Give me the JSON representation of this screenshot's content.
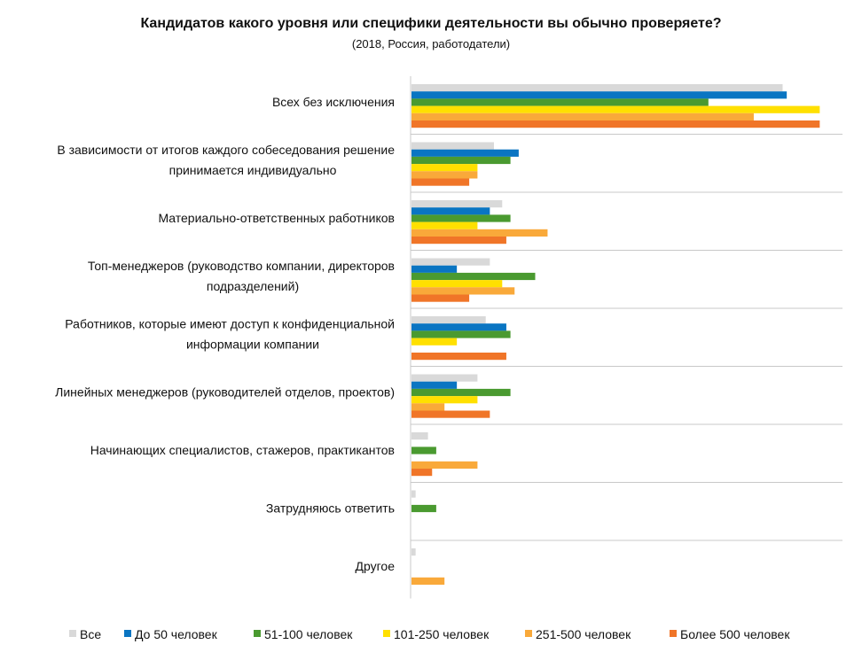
{
  "chart_data": {
    "type": "bar",
    "orientation": "horizontal",
    "title": "Кандидатов какого уровня или специфики деятельности вы обычно проверяете?",
    "subtitle": "(2018, Россия, работодатели)",
    "xlim": [
      0,
      100
    ],
    "grid": false,
    "legend_position": "bottom",
    "categories": [
      "Всех без исключения",
      "В зависимости от итогов каждого собеседования решение принимается индивидуально",
      "Материально-ответственных работников",
      "Топ-менеджеров (руководство компании, директоров подразделений)",
      "Работников, которые имеют доступ к конфиденциальной информации компании",
      "Линейных менеджеров (руководителей отделов, проектов)",
      "Начинающих специалистов, стажеров, практикантов",
      "Затрудняюсь ответить",
      "Другое"
    ],
    "category_lines": [
      [
        "Всех без исключения"
      ],
      [
        "В зависимости от итогов каждого собеседования решение",
        "принимается индивидуально"
      ],
      [
        "Материально-ответственных работников"
      ],
      [
        "Топ-менеджеров (руководство компании, директоров",
        "подразделений)"
      ],
      [
        "Работников, которые имеют доступ к конфиденциальной",
        "информации компании"
      ],
      [
        "Линейных менеджеров (руководителей отделов, проектов)"
      ],
      [
        "Начинающих специалистов, стажеров, практикантов"
      ],
      [
        "Затрудняюсь ответить"
      ],
      [
        "Другое"
      ]
    ],
    "series": [
      {
        "name": "Все",
        "color": "#d9d9d9",
        "values": [
          90,
          20,
          22,
          19,
          18,
          16,
          4,
          1,
          1
        ]
      },
      {
        "name": "До 50 человек",
        "color": "#0a75c2",
        "values": [
          91,
          26,
          19,
          11,
          23,
          11,
          0,
          0,
          0
        ]
      },
      {
        "name": "51-100 человек",
        "color": "#4a9a30",
        "values": [
          72,
          24,
          24,
          30,
          24,
          24,
          6,
          6,
          0
        ]
      },
      {
        "name": "101-250 человек",
        "color": "#ffe000",
        "values": [
          99,
          16,
          16,
          22,
          11,
          16,
          0,
          0,
          0
        ]
      },
      {
        "name": "251-500 человек",
        "color": "#f9a93a",
        "values": [
          83,
          16,
          33,
          25,
          0,
          8,
          16,
          0,
          8
        ]
      },
      {
        "name": "Более 500 человек",
        "color": "#f07528",
        "values": [
          99,
          14,
          23,
          14,
          23,
          19,
          5,
          0,
          0
        ]
      }
    ]
  }
}
